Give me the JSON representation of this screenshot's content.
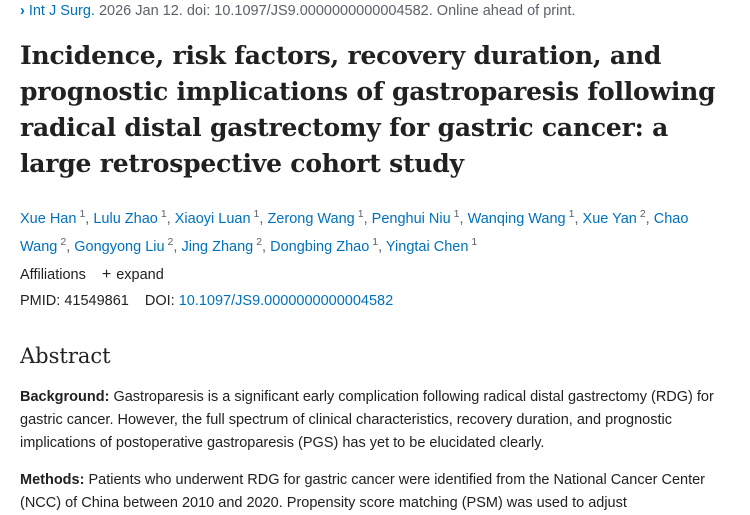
{
  "citation": {
    "chevron": "›",
    "journal": "Int J Surg.",
    "details": " 2026 Jan 12. doi: 10.1097/JS9.0000000000004582. Online ahead of print."
  },
  "article_title": "Incidence, risk factors, recovery duration, and prognostic implications of gastroparesis following radical distal gastrectomy for gastric cancer: a large retrospective cohort study",
  "authors": [
    {
      "name": "Xue Han",
      "aff": "1"
    },
    {
      "name": "Lulu Zhao",
      "aff": "1"
    },
    {
      "name": "Xiaoyi Luan",
      "aff": "1"
    },
    {
      "name": "Zerong Wang",
      "aff": "1"
    },
    {
      "name": "Penghui Niu",
      "aff": "1"
    },
    {
      "name": "Wanqing Wang",
      "aff": "1"
    },
    {
      "name": "Xue Yan",
      "aff": "2"
    },
    {
      "name": "Chao Wang",
      "aff": "2"
    },
    {
      "name": "Gongyong Liu",
      "aff": "2"
    },
    {
      "name": "Jing Zhang",
      "aff": "2"
    },
    {
      "name": "Dongbing Zhao",
      "aff": "1"
    },
    {
      "name": "Yingtai Chen",
      "aff": "1"
    }
  ],
  "affiliations": {
    "label": "Affiliations",
    "expand_label": "expand",
    "expand_icon": "+"
  },
  "identifiers": {
    "pmid_label": "PMID:",
    "pmid": "41549861",
    "doi_label": "DOI:",
    "doi": "10.1097/JS9.0000000000004582"
  },
  "abstract": {
    "heading": "Abstract",
    "background_label": "Background:",
    "background_text": " Gastroparesis is a significant early complication following radical distal gastrectomy (RDG) for gastric cancer. However, the full spectrum of clinical characteristics, recovery duration, and prognostic implications of postoperative gastroparesis (PGS) has yet to be elucidated clearly.",
    "methods_label": "Methods:",
    "methods_text": " Patients who underwent RDG for gastric cancer were identified from the National Cancer Center (NCC) of China between 2010 and 2020. Propensity score matching (PSM) was used to adjust"
  },
  "colors": {
    "link": "#0071bc",
    "text": "#212121",
    "muted": "#5b616b"
  }
}
